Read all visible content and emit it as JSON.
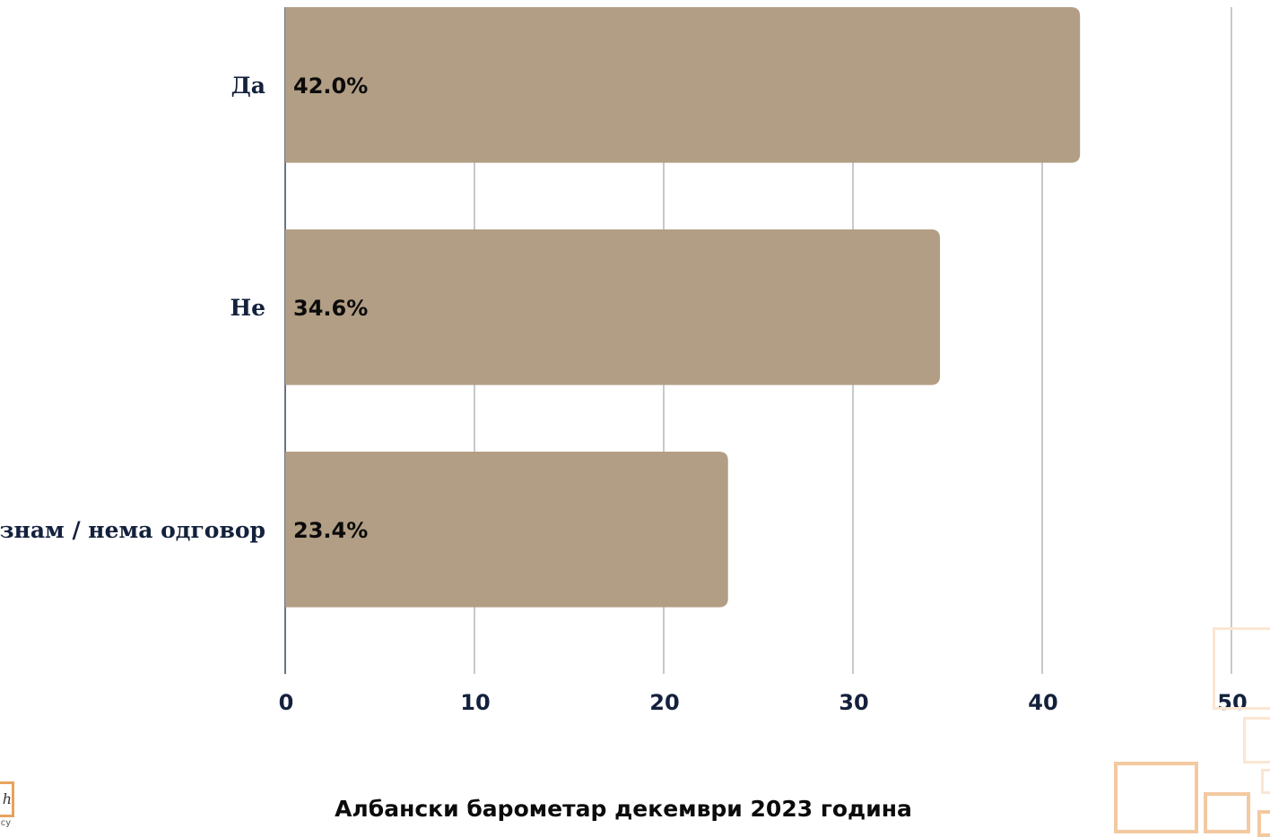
{
  "chart_data": {
    "type": "bar",
    "orientation": "horizontal",
    "categories": [
      "Да",
      "Не",
      "Не знам / нема одговор"
    ],
    "values": [
      42.0,
      34.6,
      23.4
    ],
    "value_labels": [
      "42.0%",
      "34.6%",
      "23.4%"
    ],
    "xlim": [
      0,
      50
    ],
    "xticks": [
      "0",
      "10",
      "20",
      "30",
      "40",
      "50"
    ],
    "xtick_values": [
      0,
      10,
      20,
      30,
      40,
      50
    ],
    "grid": true,
    "bar_color": "#b29e84",
    "title": "",
    "xlabel": "",
    "ylabel": ""
  },
  "caption": "Албански барометар декември 2023 година",
  "colors": {
    "accent": "#e8a35c",
    "accent_light": "#f8dcc0",
    "axis_text": "#14213d",
    "grid": "#c6c9cd"
  }
}
